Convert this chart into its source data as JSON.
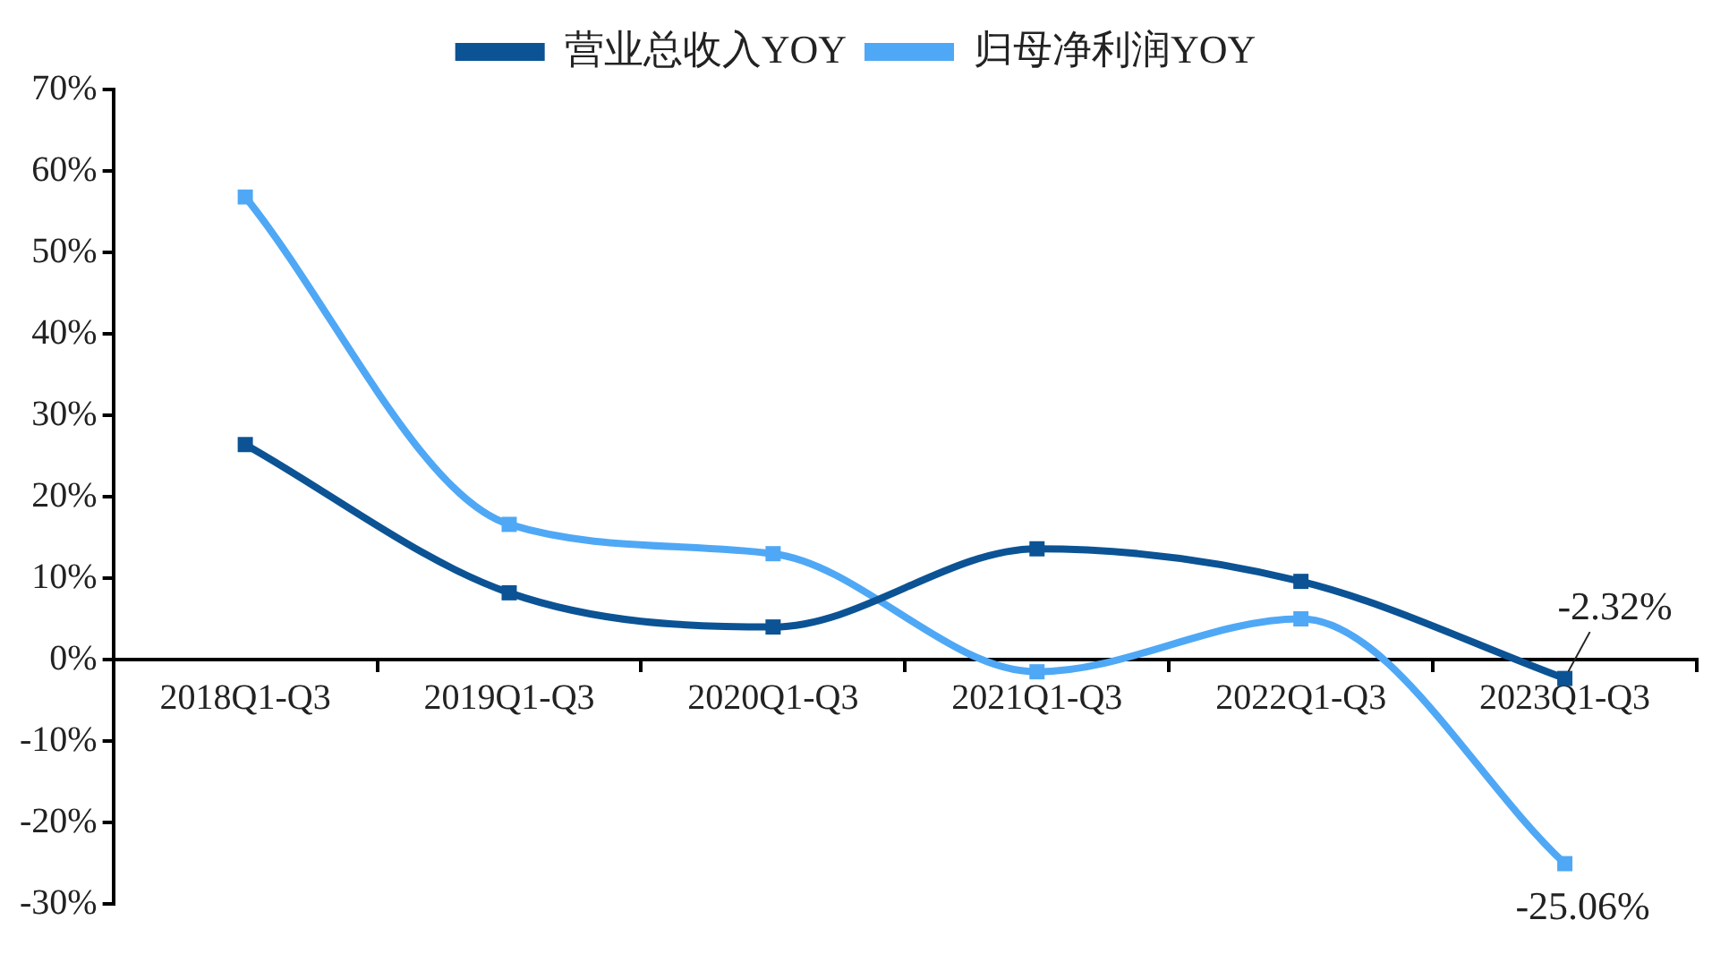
{
  "chart_data": {
    "type": "line",
    "categories": [
      "2018Q1-Q3",
      "2019Q1-Q3",
      "2020Q1-Q3",
      "2021Q1-Q3",
      "2022Q1-Q3",
      "2023Q1-Q3"
    ],
    "series": [
      {
        "name": "营业总收入YOY",
        "color": "#0b5394",
        "values": [
          26.4,
          8.2,
          4.0,
          13.6,
          9.6,
          -2.32
        ],
        "value_labels": [
          null,
          null,
          null,
          null,
          null,
          "-2.32%"
        ]
      },
      {
        "name": "归母净利润YOY",
        "color": "#4fa8f5",
        "values": [
          56.8,
          16.6,
          13.0,
          -1.5,
          5.0,
          -25.06
        ],
        "value_labels": [
          null,
          null,
          null,
          null,
          null,
          "-25.06%"
        ]
      }
    ],
    "ylim": [
      -30,
      70
    ],
    "yticks": [
      {
        "value": -30,
        "label": "-30%"
      },
      {
        "value": -20,
        "label": "-20%"
      },
      {
        "value": -10,
        "label": "-10%"
      },
      {
        "value": 0,
        "label": "0%"
      },
      {
        "value": 10,
        "label": "10%"
      },
      {
        "value": 20,
        "label": "20%"
      },
      {
        "value": 30,
        "label": "30%"
      },
      {
        "value": 40,
        "label": "40%"
      },
      {
        "value": 50,
        "label": "50%"
      },
      {
        "value": 60,
        "label": "60%"
      },
      {
        "value": 70,
        "label": "70%"
      }
    ],
    "grid": false,
    "legend": "top",
    "marker": "square",
    "line_style": "solid"
  }
}
